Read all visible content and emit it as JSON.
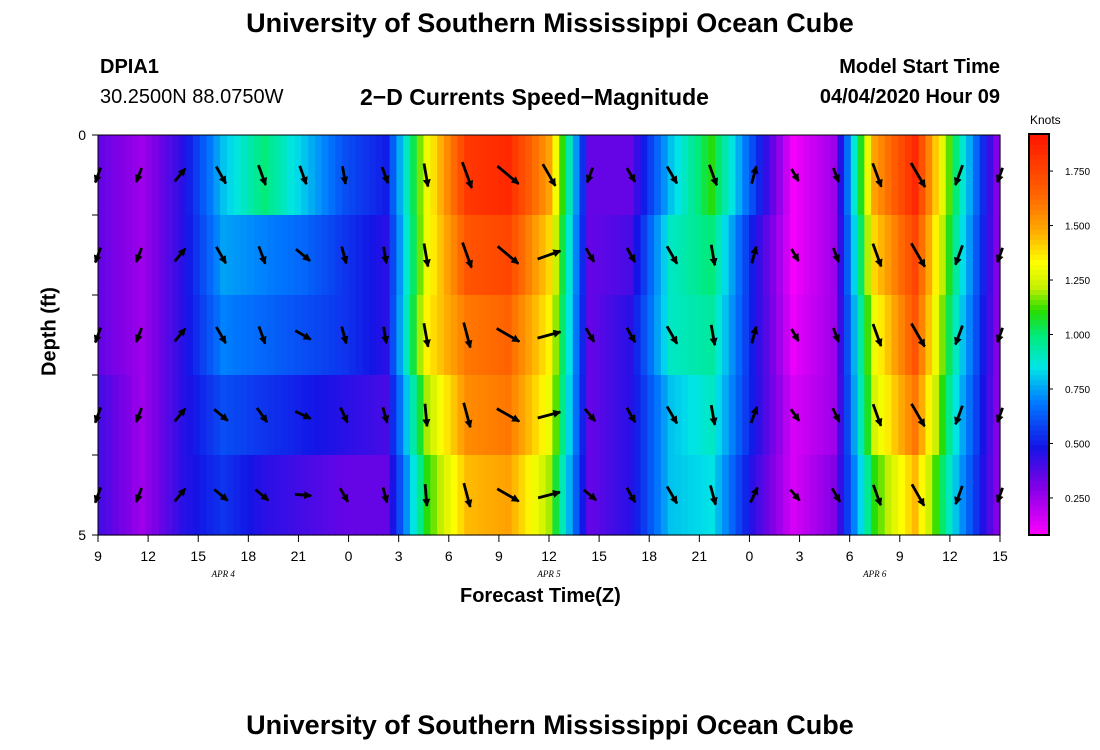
{
  "header": {
    "title": "University of Southern Mississippi Ocean Cube",
    "station": "DPIA1",
    "coords": "30.2500N 88.0750W",
    "plot_title": "2−D Currents Speed−Magnitude",
    "model_label": "Model Start Time",
    "model_time": "04/04/2020 Hour 09"
  },
  "footer": {
    "title": "University of Southern Mississippi Ocean Cube"
  },
  "colorbar": {
    "title": "Knots",
    "ticks": [
      "0.250",
      "0.500",
      "0.750",
      "1.000",
      "1.250",
      "1.500",
      "1.750"
    ],
    "tick_values": [
      0.25,
      0.5,
      0.75,
      1.0,
      1.25,
      1.5,
      1.75
    ],
    "range": [
      0.08,
      1.92
    ]
  },
  "chart_data": {
    "type": "heatmap",
    "xlabel": "Forecast Time(Z)",
    "ylabel": "Depth (ft)",
    "x_ticks": [
      "9",
      "12",
      "15",
      "18",
      "21",
      "0",
      "3",
      "6",
      "9",
      "12",
      "15",
      "18",
      "21",
      "0",
      "3",
      "6",
      "9",
      "12",
      "15"
    ],
    "x_hours": [
      0,
      3,
      6,
      9,
      12,
      15,
      18,
      21,
      24,
      27,
      30,
      33,
      36,
      39,
      42,
      45,
      48,
      51,
      54
    ],
    "date_labels": [
      {
        "text": "APR 4",
        "hour": 7.5
      },
      {
        "text": "APR 5",
        "hour": 27
      },
      {
        "text": "APR 6",
        "hour": 46.5
      }
    ],
    "y_ticks": [
      "0",
      "5"
    ],
    "ylim": [
      0,
      5
    ],
    "xlim": [
      0,
      54
    ],
    "depth_layers": 5,
    "speed_knots": [
      [
        0.35,
        0.25,
        0.45,
        0.8,
        1.0,
        0.8,
        0.6,
        0.5,
        1.3,
        1.8,
        1.85,
        1.5,
        0.35,
        0.35,
        0.8,
        1.1,
        0.6,
        0.1,
        0.25,
        1.5,
        1.85,
        1.0,
        0.3
      ],
      [
        0.35,
        0.25,
        0.45,
        0.75,
        0.7,
        0.65,
        0.55,
        0.45,
        1.3,
        1.7,
        1.75,
        1.4,
        0.35,
        0.4,
        0.9,
        1.0,
        0.5,
        0.1,
        0.25,
        1.4,
        1.75,
        0.95,
        0.3
      ],
      [
        0.35,
        0.25,
        0.45,
        0.7,
        0.65,
        0.6,
        0.55,
        0.45,
        1.35,
        1.6,
        1.65,
        1.35,
        0.35,
        0.45,
        0.9,
        0.95,
        0.5,
        0.12,
        0.25,
        1.3,
        1.7,
        0.9,
        0.3
      ],
      [
        0.4,
        0.25,
        0.45,
        0.6,
        0.55,
        0.5,
        0.45,
        0.4,
        1.2,
        1.55,
        1.6,
        1.3,
        0.35,
        0.45,
        0.8,
        0.9,
        0.5,
        0.15,
        0.25,
        1.25,
        1.6,
        0.85,
        0.3
      ],
      [
        0.4,
        0.25,
        0.45,
        0.55,
        0.45,
        0.4,
        0.35,
        0.35,
        1.1,
        1.45,
        1.5,
        1.2,
        0.35,
        0.45,
        0.8,
        0.85,
        0.45,
        0.15,
        0.3,
        1.1,
        1.45,
        0.8,
        0.3
      ]
    ],
    "arrows_direction_deg": [
      [
        200,
        200,
        40,
        150,
        160,
        160,
        170,
        160,
        170,
        160,
        130,
        150,
        200,
        150,
        150,
        160,
        15,
        150,
        160,
        160,
        150,
        200,
        200
      ],
      [
        200,
        200,
        40,
        150,
        160,
        130,
        165,
        170,
        170,
        160,
        130,
        70,
        150,
        150,
        150,
        170,
        15,
        150,
        160,
        160,
        150,
        200,
        200
      ],
      [
        200,
        200,
        40,
        150,
        160,
        120,
        165,
        170,
        170,
        165,
        120,
        75,
        150,
        150,
        150,
        170,
        15,
        150,
        160,
        160,
        150,
        200,
        200
      ],
      [
        200,
        200,
        40,
        130,
        145,
        115,
        155,
        165,
        175,
        165,
        120,
        75,
        140,
        150,
        150,
        170,
        20,
        145,
        155,
        160,
        150,
        200,
        200
      ],
      [
        200,
        200,
        40,
        130,
        130,
        95,
        150,
        165,
        175,
        165,
        120,
        75,
        130,
        150,
        150,
        165,
        25,
        140,
        150,
        160,
        150,
        200,
        200
      ]
    ]
  }
}
